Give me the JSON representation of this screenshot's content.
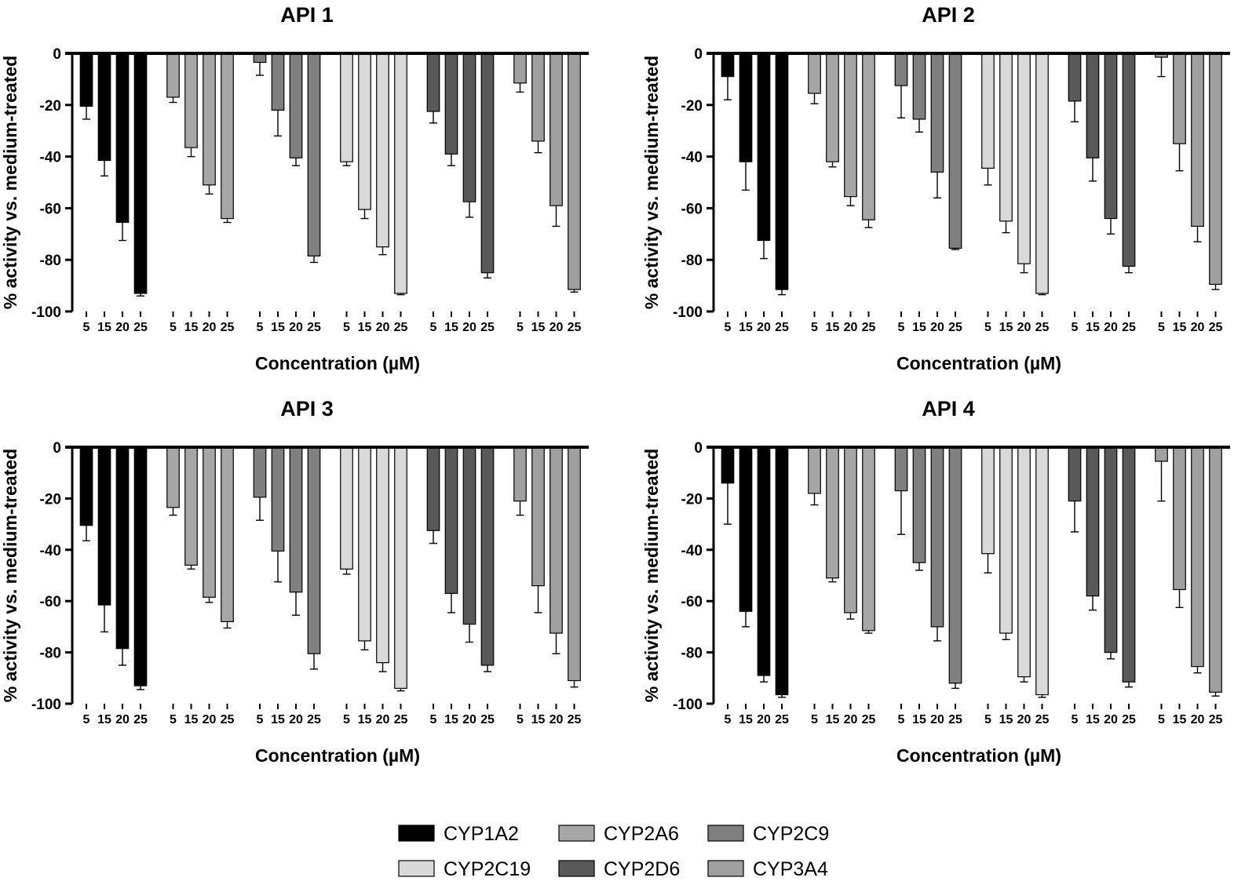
{
  "chart_data": {
    "type": "bar",
    "xlabel": "Concentration (µM)",
    "ylabel": "% activity vs. medium-treated",
    "ylim": [
      -100,
      0
    ],
    "yticks": [
      0,
      -20,
      -40,
      -60,
      -80,
      -100
    ],
    "concentrations": [
      "5",
      "15",
      "20",
      "25"
    ],
    "enzymes": [
      {
        "name": "CYP1A2",
        "color": "#000000"
      },
      {
        "name": "CYP2A6",
        "color": "#a6a6a6"
      },
      {
        "name": "CYP2C9",
        "color": "#7f7f7f"
      },
      {
        "name": "CYP2C19",
        "color": "#d9d9d9"
      },
      {
        "name": "CYP2D6",
        "color": "#595959"
      },
      {
        "name": "CYP3A4",
        "color": "#a0a0a0"
      }
    ],
    "legend_placement": "bottom",
    "panels": [
      {
        "title": "API 1",
        "values": [
          [
            -20.5,
            -41.5,
            -65.5,
            -93
          ],
          [
            -17,
            -36.5,
            -51,
            -64
          ],
          [
            -3.5,
            -22,
            -40.5,
            -78.5
          ],
          [
            -42,
            -60.5,
            -75,
            -93
          ],
          [
            -22.5,
            -39,
            -57.5,
            -85
          ],
          [
            -11.5,
            -34,
            -59,
            -91.5
          ]
        ],
        "errors": [
          [
            5,
            6,
            7,
            1
          ],
          [
            2,
            3.5,
            3.5,
            1.5
          ],
          [
            5,
            10,
            3,
            2.5
          ],
          [
            1.5,
            3.5,
            3,
            0.5
          ],
          [
            4.5,
            4.5,
            6,
            2
          ],
          [
            3.5,
            4.5,
            8,
            1
          ]
        ]
      },
      {
        "title": "API 2",
        "values": [
          [
            -9,
            -42,
            -72.5,
            -91.5
          ],
          [
            -15.5,
            -42,
            -55.5,
            -64.5
          ],
          [
            -12.5,
            -25.5,
            -46,
            -75.5
          ],
          [
            -44.5,
            -65,
            -81.5,
            -93
          ],
          [
            -18.5,
            -40.5,
            -64,
            -82.5
          ],
          [
            -1.5,
            -35,
            -67,
            -89.5
          ]
        ],
        "errors": [
          [
            9,
            11,
            7,
            2
          ],
          [
            4,
            2,
            3.5,
            3
          ],
          [
            12.5,
            5,
            10,
            0.5
          ],
          [
            6.5,
            4.5,
            3.5,
            0.5
          ],
          [
            8,
            9,
            6,
            2.5
          ],
          [
            7.5,
            10.5,
            6,
            2
          ]
        ]
      },
      {
        "title": "API 3",
        "values": [
          [
            -30.5,
            -61.5,
            -78.5,
            -93
          ],
          [
            -23.5,
            -46,
            -58.5,
            -68
          ],
          [
            -19.5,
            -40.5,
            -56.5,
            -80.5
          ],
          [
            -47.5,
            -75.5,
            -84,
            -94
          ],
          [
            -32.5,
            -57,
            -69,
            -85
          ],
          [
            -21,
            -54,
            -72.5,
            -91
          ]
        ],
        "errors": [
          [
            6,
            10.5,
            6.5,
            1.5
          ],
          [
            3,
            1.5,
            2,
            2.5
          ],
          [
            9,
            12,
            9,
            6
          ],
          [
            2,
            3.5,
            3.5,
            1
          ],
          [
            5,
            7.5,
            7,
            2.5
          ],
          [
            5.5,
            10.5,
            8,
            2.5
          ]
        ]
      },
      {
        "title": "API 4",
        "values": [
          [
            -14,
            -64,
            -89,
            -96.5
          ],
          [
            -18,
            -51,
            -64.5,
            -71.5
          ],
          [
            -17,
            -45,
            -70,
            -92
          ],
          [
            -41.5,
            -72.5,
            -89.5,
            -96.5
          ],
          [
            -21,
            -58,
            -80,
            -91.5
          ],
          [
            -5.5,
            -55.5,
            -85.5,
            -95.5
          ]
        ],
        "errors": [
          [
            16,
            6,
            2.5,
            1
          ],
          [
            4.5,
            1.5,
            2.5,
            1
          ],
          [
            17,
            3,
            5.5,
            2
          ],
          [
            7.5,
            2.5,
            2,
            1
          ],
          [
            12,
            5.5,
            2.5,
            2
          ],
          [
            15.5,
            7,
            2.5,
            1.5
          ]
        ]
      }
    ]
  }
}
